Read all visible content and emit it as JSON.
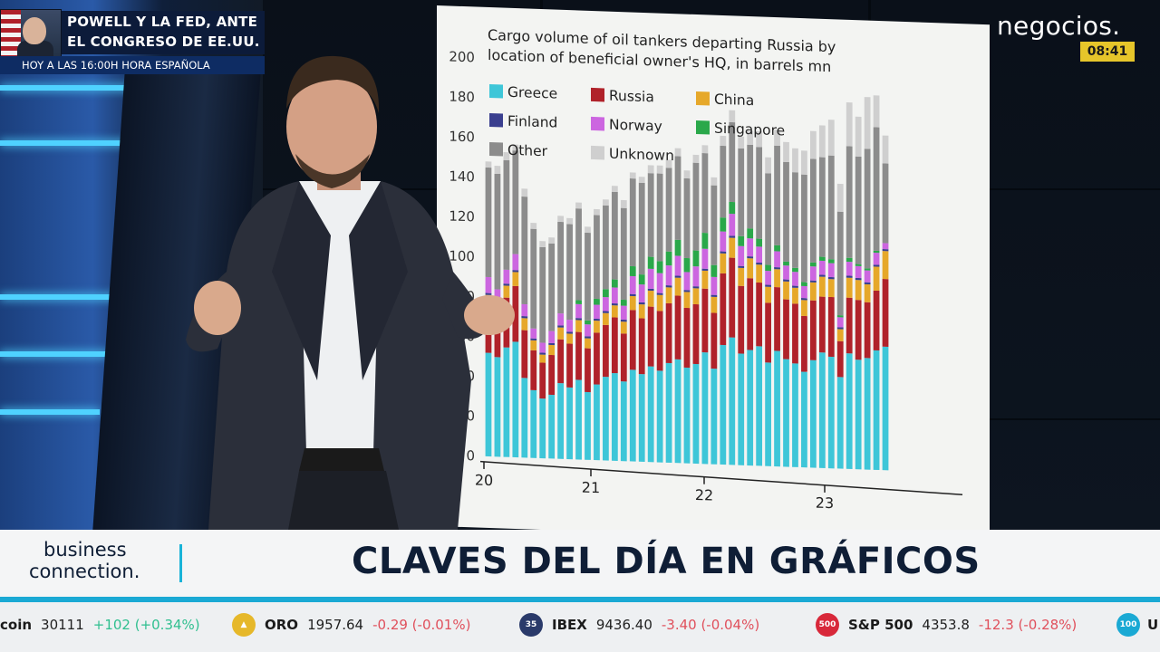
{
  "headline": {
    "line1": "POWELL Y LA FED, ANTE",
    "line2": "EL CONGRESO DE EE.UU.",
    "subline": "HOY A LAS 16:00H HORA ESPAÑOLA"
  },
  "channel": {
    "logo": "negocios.",
    "clock": "08:41"
  },
  "lower_third": {
    "brand_line1": "business",
    "brand_line2": "connection.",
    "title": "CLAVES DEL DÍA EN GRÁFICOS"
  },
  "ticker": [
    {
      "name": "coin",
      "value": "30111",
      "change": "+102 (+0.34%)",
      "up": true
    },
    {
      "name": "ORO",
      "value": "1957.64",
      "change": "-0.29 (-0.01%)",
      "up": false,
      "badge_color": "#e6b82a"
    },
    {
      "name": "IBEX",
      "value": "9436.40",
      "change": "-3.40 (-0.04%)",
      "up": false,
      "badge_color": "#2a3a6a",
      "badge_text": "35"
    },
    {
      "name": "S&P 500",
      "value": "4353.8",
      "change": "-12.3 (-0.28%)",
      "up": false,
      "badge_color": "#d8283a",
      "badge_text": "500"
    },
    {
      "name": "U",
      "badge_color": "#1aa9d4",
      "badge_text": "100"
    }
  ],
  "chart_data": {
    "type": "bar",
    "stacked": true,
    "title_line1": "Cargo volume of oil tankers departing Russia by",
    "title_line2": "location of beneficial owner's HQ, in barrels mn",
    "ylim": [
      0,
      200
    ],
    "yticks": [
      0,
      20,
      40,
      60,
      80,
      100,
      120,
      140,
      160,
      180,
      200
    ],
    "xtick_labels": [
      "20",
      "21",
      "22",
      "23"
    ],
    "legend_position": "top-left",
    "grid": false,
    "series": [
      {
        "name": "Greece",
        "color": "#3ec6d8",
        "values": [
          52,
          50,
          55,
          58,
          40,
          34,
          30,
          32,
          38,
          36,
          40,
          34,
          38,
          42,
          44,
          40,
          46,
          44,
          48,
          46,
          50,
          52,
          48,
          50,
          56,
          48,
          60,
          64,
          56,
          58,
          60,
          52,
          58,
          54,
          52,
          48,
          54,
          58,
          56,
          46,
          58,
          55,
          56,
          60,
          62
        ]
      },
      {
        "name": "Russia",
        "color": "#b0222a",
        "values": [
          24,
          22,
          25,
          28,
          24,
          20,
          18,
          20,
          22,
          22,
          24,
          22,
          26,
          26,
          28,
          24,
          30,
          28,
          30,
          30,
          30,
          32,
          30,
          30,
          32,
          28,
          36,
          40,
          34,
          36,
          32,
          30,
          32,
          30,
          30,
          28,
          30,
          28,
          30,
          18,
          28,
          30,
          28,
          30,
          34
        ]
      },
      {
        "name": "China",
        "color": "#e6a82a",
        "values": [
          5,
          4,
          6,
          7,
          6,
          5,
          4,
          5,
          6,
          5,
          6,
          5,
          6,
          6,
          6,
          6,
          7,
          7,
          8,
          8,
          8,
          9,
          8,
          8,
          9,
          8,
          10,
          10,
          9,
          10,
          9,
          8,
          9,
          9,
          8,
          8,
          9,
          10,
          9,
          6,
          10,
          10,
          9,
          12,
          14
        ]
      },
      {
        "name": "Finland",
        "color": "#3a3f8f",
        "values": [
          1,
          1,
          1,
          1,
          1,
          1,
          1,
          1,
          1,
          1,
          1,
          1,
          1,
          1,
          1,
          1,
          1,
          1,
          1,
          1,
          1,
          1,
          1,
          1,
          1,
          1,
          1,
          1,
          1,
          1,
          1,
          1,
          1,
          1,
          1,
          1,
          1,
          1,
          1,
          1,
          1,
          1,
          1,
          1,
          1
        ]
      },
      {
        "name": "Norway",
        "color": "#cc66e0",
        "values": [
          8,
          7,
          7,
          8,
          6,
          5,
          5,
          6,
          6,
          6,
          7,
          6,
          7,
          7,
          8,
          7,
          9,
          9,
          10,
          10,
          10,
          10,
          9,
          10,
          10,
          9,
          10,
          11,
          10,
          9,
          8,
          7,
          8,
          7,
          7,
          6,
          7,
          7,
          7,
          5,
          7,
          6,
          6,
          6,
          3
        ]
      },
      {
        "name": "Singapore",
        "color": "#2aa84a",
        "values": [
          0,
          0,
          0,
          0,
          0,
          0,
          0,
          0,
          0,
          0,
          2,
          2,
          3,
          4,
          4,
          3,
          5,
          5,
          6,
          6,
          7,
          8,
          7,
          8,
          8,
          6,
          7,
          6,
          5,
          5,
          4,
          3,
          3,
          2,
          2,
          2,
          2,
          2,
          2,
          1,
          2,
          1,
          1,
          1,
          0
        ]
      },
      {
        "name": "Other",
        "color": "#8c8c8c",
        "values": [
          55,
          58,
          55,
          52,
          54,
          50,
          48,
          44,
          46,
          48,
          46,
          44,
          42,
          42,
          44,
          46,
          44,
          46,
          42,
          44,
          42,
          42,
          40,
          44,
          40,
          40,
          36,
          40,
          44,
          42,
          46,
          46,
          50,
          50,
          48,
          54,
          52,
          50,
          52,
          52,
          56,
          54,
          60,
          62,
          40
        ]
      },
      {
        "name": "Unknown",
        "color": "#cfcfcf",
        "values": [
          3,
          4,
          4,
          3,
          4,
          3,
          3,
          3,
          3,
          3,
          3,
          3,
          3,
          3,
          3,
          4,
          3,
          3,
          4,
          4,
          4,
          4,
          4,
          4,
          4,
          4,
          5,
          6,
          6,
          7,
          8,
          8,
          8,
          10,
          12,
          12,
          14,
          16,
          18,
          14,
          22,
          20,
          26,
          16,
          14
        ]
      }
    ]
  }
}
